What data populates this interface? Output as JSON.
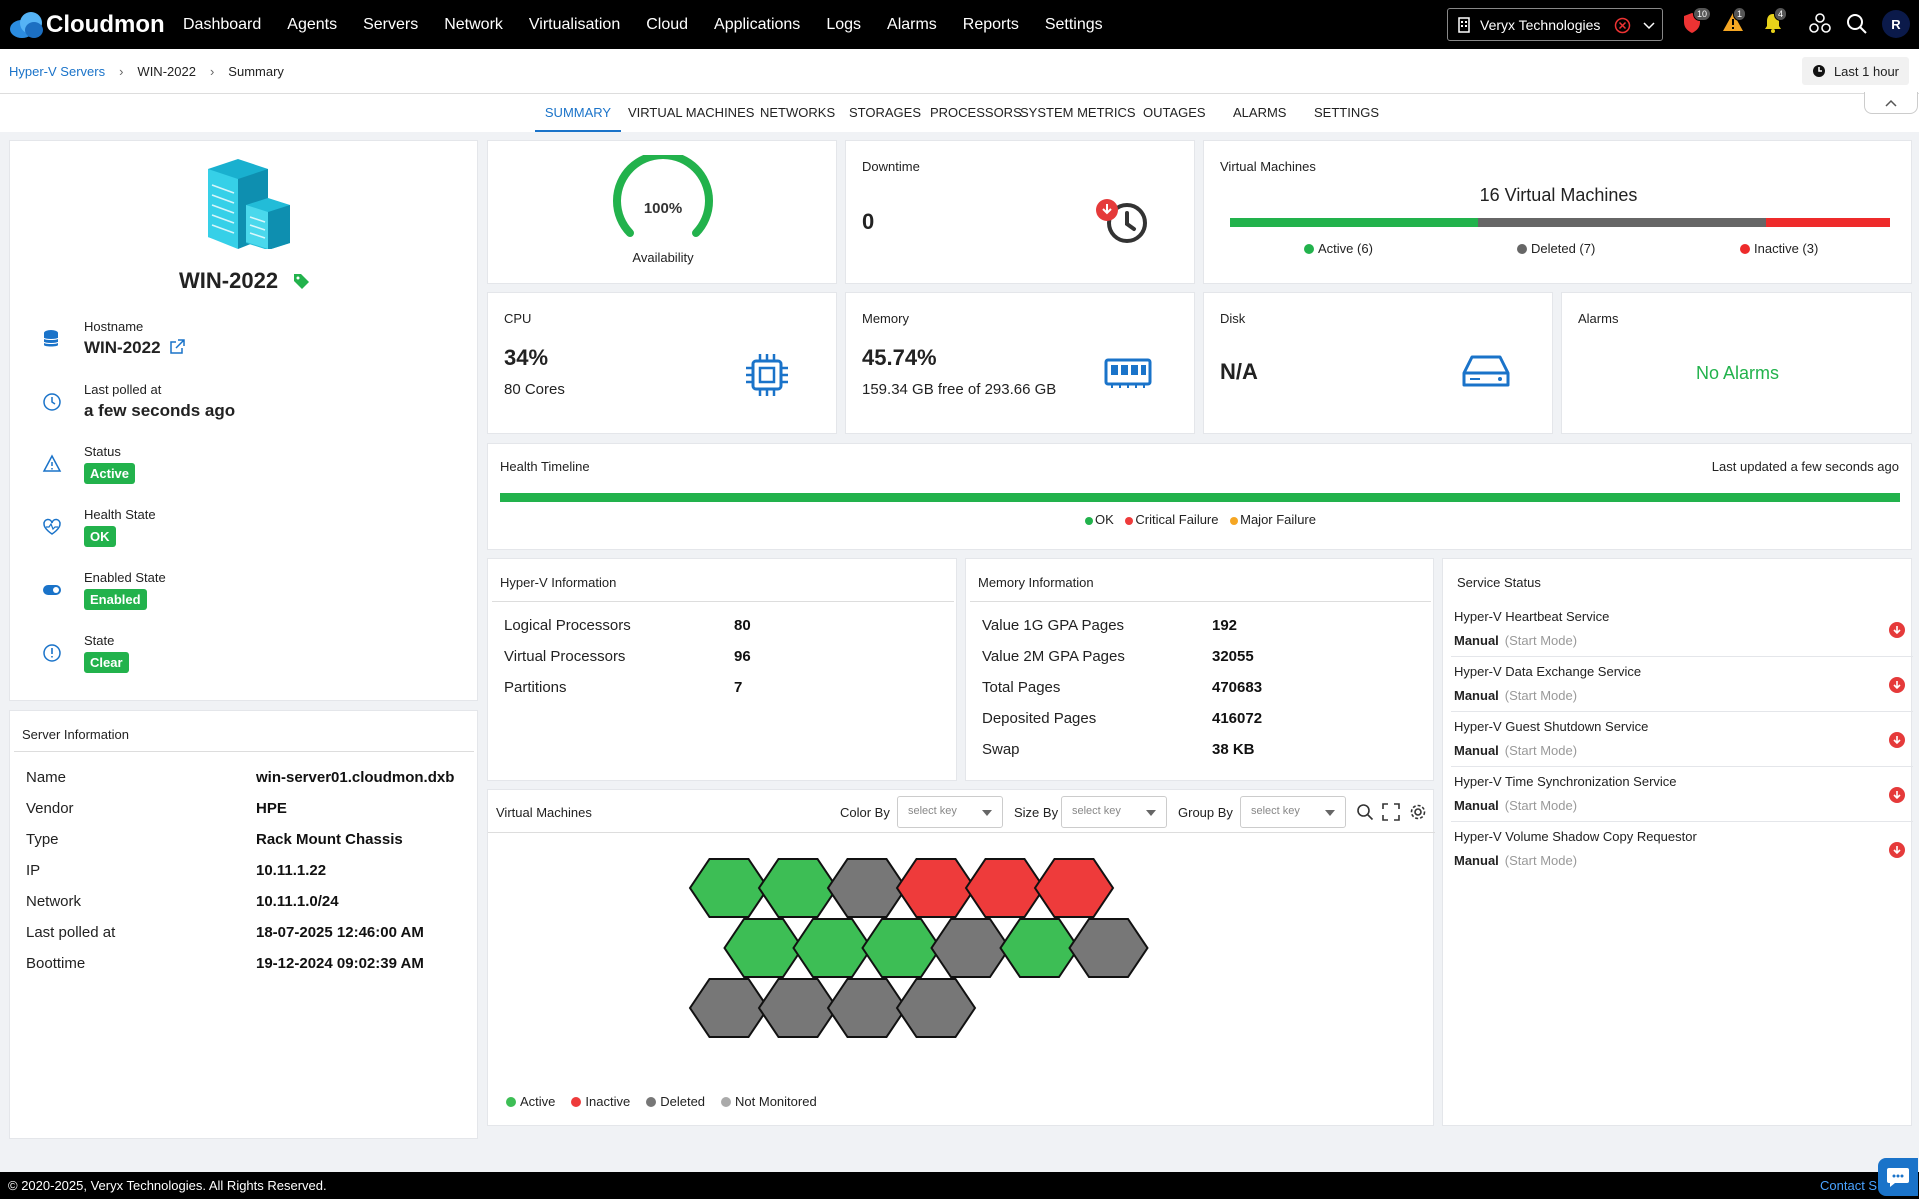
{
  "app": {
    "logo_text": "Cloudmon",
    "nav": [
      "Dashboard",
      "Agents",
      "Servers",
      "Network",
      "Virtualisation",
      "Cloud",
      "Applications",
      "Logs",
      "Alarms",
      "Reports",
      "Settings"
    ],
    "org_selector": "Veryx Technologies",
    "badges": {
      "security": "10",
      "warning": "1",
      "notifications": "4"
    },
    "avatar": "R"
  },
  "breadcrumb": {
    "root": "Hyper-V Servers",
    "server": "WIN-2022",
    "page": "Summary"
  },
  "time_range": "Last 1 hour",
  "tabs": [
    "SUMMARY",
    "VIRTUAL MACHINES",
    "NETWORKS",
    "STORAGES",
    "PROCESSORS",
    "SYSTEM METRICS",
    "OUTAGES",
    "ALARMS",
    "SETTINGS"
  ],
  "server": {
    "name": "WIN-2022",
    "fields": [
      {
        "label": "Hostname",
        "value": "WIN-2022"
      },
      {
        "label": "Last polled at",
        "value": "a few seconds ago"
      },
      {
        "label": "Status",
        "value": "Active"
      },
      {
        "label": "Health State",
        "value": "OK"
      },
      {
        "label": "Enabled State",
        "value": "Enabled"
      },
      {
        "label": "State",
        "value": "Clear"
      }
    ]
  },
  "server_info": {
    "title": "Server Information",
    "rows": [
      {
        "k": "Name",
        "v": "win-server01.cloudmon.dxb"
      },
      {
        "k": "Vendor",
        "v": "HPE"
      },
      {
        "k": "Type",
        "v": "Rack Mount Chassis"
      },
      {
        "k": "IP",
        "v": "10.11.1.22"
      },
      {
        "k": "Network",
        "v": "10.11.1.0/24"
      },
      {
        "k": "Last polled at",
        "v": "18-07-2025 12:46:00 AM"
      },
      {
        "k": "Boottime",
        "v": "19-12-2024 09:02:39 AM"
      }
    ]
  },
  "availability": {
    "value": "100%",
    "percent": 100,
    "label": "Availability"
  },
  "downtime": {
    "title": "Downtime",
    "value": "0"
  },
  "vm_summary": {
    "title": "Virtual Machines",
    "headline": "16 Virtual Machines",
    "active": "Active (6)",
    "deleted": "Deleted (7)",
    "inactive": "Inactive (3)",
    "counts": {
      "active": 6,
      "deleted": 7,
      "inactive": 3
    }
  },
  "cpu": {
    "title": "CPU",
    "value": "34%",
    "sub": "80 Cores"
  },
  "memory": {
    "title": "Memory",
    "value": "45.74%",
    "sub": "159.34 GB free of 293.66 GB"
  },
  "disk": {
    "title": "Disk",
    "value": "N/A"
  },
  "alarms": {
    "title": "Alarms",
    "value": "No Alarms"
  },
  "health_timeline": {
    "title": "Health Timeline",
    "updated": "Last updated a few seconds ago",
    "legend": [
      "OK",
      "Critical Failure",
      "Major Failure"
    ]
  },
  "hyperv_info": {
    "title": "Hyper-V Information",
    "rows": [
      {
        "k": "Logical Processors",
        "v": "80"
      },
      {
        "k": "Virtual Processors",
        "v": "96"
      },
      {
        "k": "Partitions",
        "v": "7"
      }
    ]
  },
  "memory_info": {
    "title": "Memory Information",
    "rows": [
      {
        "k": "Value 1G GPA Pages",
        "v": "192"
      },
      {
        "k": "Value 2M GPA Pages",
        "v": "32055"
      },
      {
        "k": "Total Pages",
        "v": "470683"
      },
      {
        "k": "Deposited Pages",
        "v": "416072"
      },
      {
        "k": "Swap",
        "v": "38 KB"
      }
    ]
  },
  "service_status": {
    "title": "Service Status",
    "start_mode_hint": "(Start Mode)",
    "services": [
      {
        "name": "Hyper-V Heartbeat Service",
        "mode": "Manual"
      },
      {
        "name": "Hyper-V Data Exchange Service",
        "mode": "Manual"
      },
      {
        "name": "Hyper-V Guest Shutdown Service",
        "mode": "Manual"
      },
      {
        "name": "Hyper-V Time Synchronization Service",
        "mode": "Manual"
      },
      {
        "name": "Hyper-V Volume Shadow Copy Requestor",
        "mode": "Manual"
      }
    ]
  },
  "vm_map": {
    "title": "Virtual Machines",
    "color_by": "Color By",
    "size_by": "Size By",
    "group_by": "Group By",
    "placeholder": "select key",
    "legend": [
      "Active",
      "Inactive",
      "Deleted",
      "Not Monitored"
    ],
    "hex_states": [
      [
        "active",
        "active",
        "deleted",
        "inactive",
        "inactive",
        "inactive"
      ],
      [
        "active",
        "active",
        "active",
        "deleted",
        "active",
        "deleted"
      ],
      [
        "deleted",
        "deleted",
        "deleted",
        "deleted"
      ]
    ]
  },
  "colors": {
    "active": "#3dbe55",
    "inactive": "#ee3b3b",
    "deleted": "#777777",
    "not_monitored": "#aaaaaa",
    "accent": "#1a73c9"
  },
  "footer": {
    "copyright": "© 2020-2025, Veryx Technologies. All Rights Reserved.",
    "contact": "Contact S"
  }
}
